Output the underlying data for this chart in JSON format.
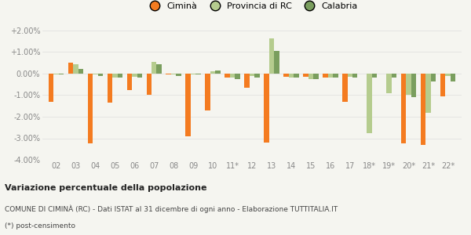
{
  "categories": [
    "02",
    "03",
    "04",
    "05",
    "06",
    "07",
    "08",
    "09",
    "10",
    "11*",
    "12",
    "13",
    "14",
    "15",
    "16",
    "17",
    "18*",
    "19*",
    "20*",
    "21*",
    "22*"
  ],
  "cimina": [
    -1.3,
    0.5,
    -3.25,
    -1.35,
    -0.75,
    -1.0,
    -0.05,
    -2.9,
    -1.7,
    -0.2,
    -0.65,
    -3.2,
    -0.15,
    -0.15,
    -0.2,
    -1.3,
    0.0,
    0.0,
    -3.25,
    -3.3,
    -1.05
  ],
  "provincia_rc": [
    -0.05,
    0.45,
    -0.05,
    -0.2,
    -0.15,
    0.55,
    -0.05,
    -0.05,
    0.1,
    -0.2,
    -0.1,
    1.65,
    -0.2,
    -0.25,
    -0.2,
    -0.15,
    -2.75,
    -0.9,
    -1.0,
    -1.8,
    -0.1
  ],
  "calabria": [
    -0.05,
    0.2,
    -0.1,
    -0.2,
    -0.2,
    0.45,
    -0.1,
    -0.05,
    0.15,
    -0.25,
    -0.2,
    1.05,
    -0.2,
    -0.25,
    -0.2,
    -0.2,
    -0.2,
    -0.2,
    -1.1,
    -0.35,
    -0.35
  ],
  "color_cimina": "#f47b20",
  "color_provincia": "#b5cc8e",
  "color_calabria": "#7a9e5e",
  "ylim": [
    -4.0,
    2.0
  ],
  "yticks": [
    -4.0,
    -3.0,
    -2.0,
    -1.0,
    0.0,
    1.0,
    2.0
  ],
  "ytick_labels": [
    "-4.00%",
    "-3.00%",
    "-2.00%",
    "-1.00%",
    "0.00%",
    "+1.00%",
    "+2.00%"
  ],
  "title_bold": "Variazione percentuale della popolazione",
  "subtitle": "COMUNE DI CIMINÀ (RC) - Dati ISTAT al 31 dicembre di ogni anno - Elaborazione TUTTITALIA.IT",
  "footnote": "(*) post-censimento",
  "legend_labels": [
    "Ciminà",
    "Provincia di RC",
    "Calabria"
  ],
  "bar_width": 0.26,
  "background_color": "#f5f5f0",
  "grid_color": "#dddddd",
  "tick_color": "#888888"
}
